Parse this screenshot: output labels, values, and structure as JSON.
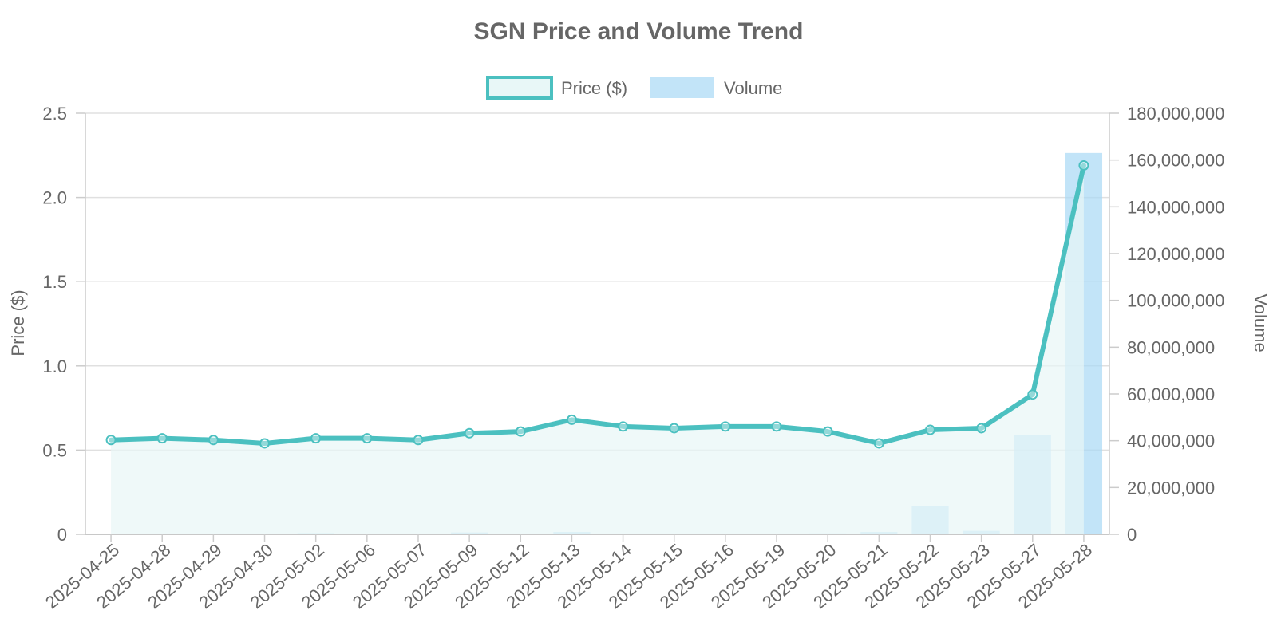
{
  "chart_data": {
    "type": "bar+line",
    "title": "SGN Price and Volume Trend",
    "categories": [
      "2025-04-25",
      "2025-04-28",
      "2025-04-29",
      "2025-04-30",
      "2025-05-02",
      "2025-05-06",
      "2025-05-07",
      "2025-05-09",
      "2025-05-12",
      "2025-05-13",
      "2025-05-14",
      "2025-05-15",
      "2025-05-16",
      "2025-05-19",
      "2025-05-20",
      "2025-05-21",
      "2025-05-22",
      "2025-05-23",
      "2025-05-27",
      "2025-05-28"
    ],
    "series": [
      {
        "name": "Price ($)",
        "type": "line",
        "axis": "left",
        "color": "#4bc0c0",
        "fill": "#e8f7f7",
        "values": [
          0.56,
          0.57,
          0.56,
          0.54,
          0.57,
          0.57,
          0.56,
          0.6,
          0.61,
          0.68,
          0.64,
          0.63,
          0.64,
          0.64,
          0.61,
          0.54,
          0.62,
          0.63,
          0.83,
          2.19
        ]
      },
      {
        "name": "Volume",
        "type": "bar",
        "axis": "right",
        "color": "#a8d8f5",
        "values": [
          200000,
          100000,
          100000,
          100000,
          500000,
          200000,
          200000,
          800000,
          300000,
          1000000,
          300000,
          200000,
          200000,
          300000,
          400000,
          1000000,
          12000000,
          1500000,
          42500000,
          163000000
        ]
      }
    ],
    "y_left": {
      "label": "Price ($)",
      "ylim": [
        0,
        2.5
      ],
      "ticks": [
        "0",
        "0.5",
        "1.0",
        "1.5",
        "2.0",
        "2.5"
      ],
      "tick_values": [
        0,
        0.5,
        1.0,
        1.5,
        2.0,
        2.5
      ]
    },
    "y_right": {
      "label": "Volume",
      "ylim": [
        0,
        180000000
      ],
      "ticks": [
        "0",
        "20,000,000",
        "40,000,000",
        "60,000,000",
        "80,000,000",
        "100,000,000",
        "120,000,000",
        "140,000,000",
        "160,000,000",
        "180,000,000"
      ],
      "tick_values": [
        0,
        20000000,
        40000000,
        60000000,
        80000000,
        100000000,
        120000000,
        140000000,
        160000000,
        180000000
      ]
    },
    "legend": {
      "placement": "top-center"
    },
    "grid": true
  }
}
